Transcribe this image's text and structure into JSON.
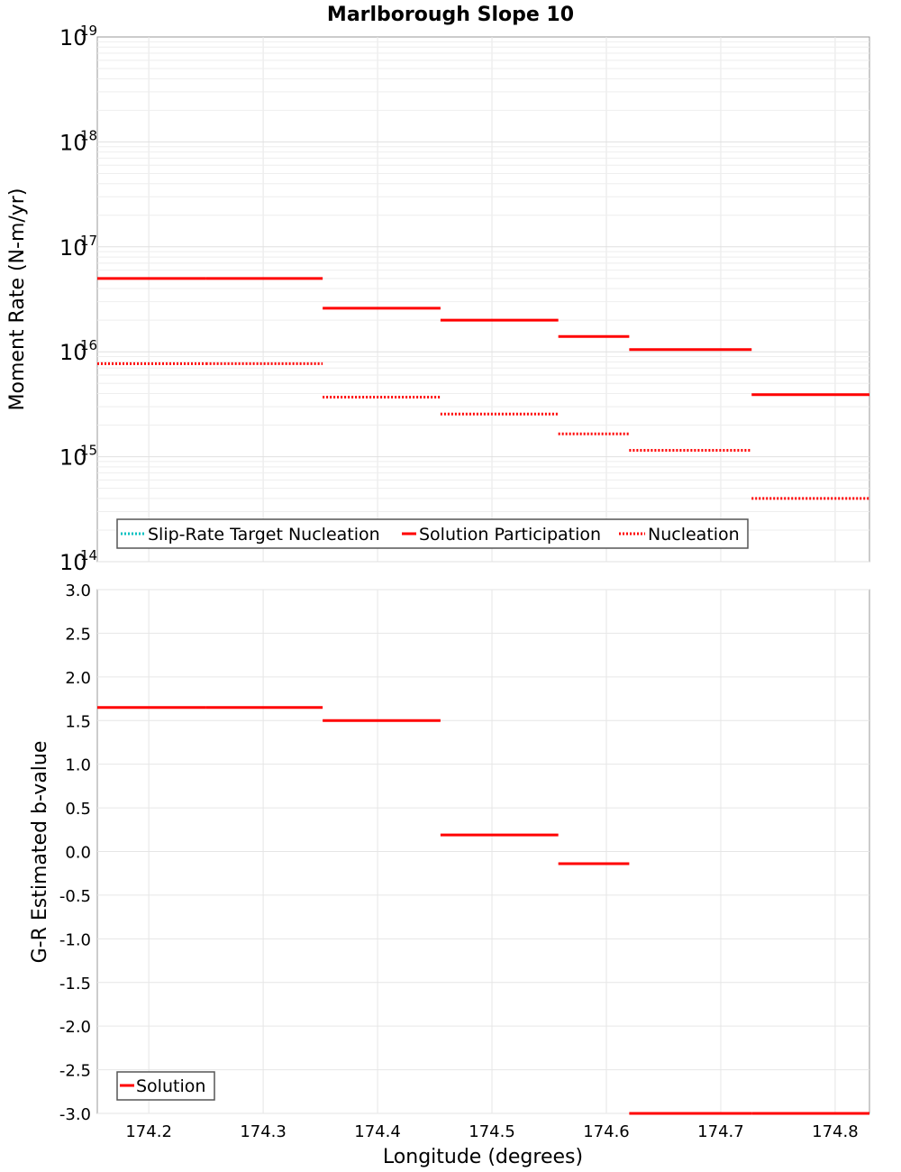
{
  "chart_data": [
    {
      "type": "line",
      "title": "Marlborough Slope 10",
      "xlabel": "",
      "ylabel": "Moment Rate (N-m/yr)",
      "yscale": "log",
      "xlim": [
        174.155,
        174.83
      ],
      "ylim": [
        100000000000000.0,
        1e+19
      ],
      "x_ticks": [],
      "y_ticks": [
        {
          "base": "10",
          "exp": "14",
          "value": 100000000000000.0
        },
        {
          "base": "10",
          "exp": "15",
          "value": 1000000000000000.0
        },
        {
          "base": "10",
          "exp": "16",
          "value": 1e+16
        },
        {
          "base": "10",
          "exp": "17",
          "value": 1e+17
        },
        {
          "base": "10",
          "exp": "18",
          "value": 1e+18
        },
        {
          "base": "10",
          "exp": "19",
          "value": 1e+19
        }
      ],
      "grid": true,
      "legend_position": "bottom-left",
      "series": [
        {
          "name": "Slip-Rate Target Nucleation",
          "color": "#00c0c0",
          "style": "dotted",
          "segments": []
        },
        {
          "name": "Solution Participation",
          "color": "#ff0000",
          "style": "solid",
          "segments": [
            {
              "x0": 174.155,
              "x1": 174.25,
              "y": 5e+16
            },
            {
              "x0": 174.25,
              "x1": 174.352,
              "y": 5e+16
            },
            {
              "x0": 174.352,
              "x1": 174.455,
              "y": 2.6e+16
            },
            {
              "x0": 174.455,
              "x1": 174.558,
              "y": 2e+16
            },
            {
              "x0": 174.558,
              "x1": 174.62,
              "y": 1.4e+16
            },
            {
              "x0": 174.62,
              "x1": 174.727,
              "y": 1.05e+16
            },
            {
              "x0": 174.727,
              "x1": 174.83,
              "y": 3900000000000000.0
            }
          ]
        },
        {
          "name": "Nucleation",
          "color": "#ff0000",
          "style": "dotted",
          "segments": [
            {
              "x0": 174.155,
              "x1": 174.25,
              "y": 7700000000000000.0
            },
            {
              "x0": 174.25,
              "x1": 174.352,
              "y": 7700000000000000.0
            },
            {
              "x0": 174.352,
              "x1": 174.455,
              "y": 3700000000000000.0
            },
            {
              "x0": 174.455,
              "x1": 174.558,
              "y": 2550000000000000.0
            },
            {
              "x0": 174.558,
              "x1": 174.62,
              "y": 1650000000000000.0
            },
            {
              "x0": 174.62,
              "x1": 174.727,
              "y": 1150000000000000.0
            },
            {
              "x0": 174.727,
              "x1": 174.83,
              "y": 400000000000000.0
            }
          ]
        }
      ]
    },
    {
      "type": "line",
      "title": "",
      "xlabel": "Longitude (degrees)",
      "ylabel": "G-R Estimated b-value",
      "xlim": [
        174.155,
        174.83
      ],
      "ylim": [
        -3.0,
        3.0
      ],
      "x_ticks": [
        "174.2",
        "174.3",
        "174.4",
        "174.5",
        "174.6",
        "174.7",
        "174.8"
      ],
      "y_ticks": [
        "3.0",
        "2.5",
        "2.0",
        "1.5",
        "1.0",
        "0.5",
        "0.0",
        "-0.5",
        "-1.0",
        "-1.5",
        "-2.0",
        "-2.5",
        "-3.0"
      ],
      "grid": true,
      "legend_position": "bottom-left",
      "series": [
        {
          "name": "Solution",
          "color": "#ff0000",
          "style": "solid",
          "segments": [
            {
              "x0": 174.155,
              "x1": 174.25,
              "y": 1.65
            },
            {
              "x0": 174.25,
              "x1": 174.352,
              "y": 1.65
            },
            {
              "x0": 174.352,
              "x1": 174.455,
              "y": 1.5
            },
            {
              "x0": 174.455,
              "x1": 174.558,
              "y": 0.19
            },
            {
              "x0": 174.558,
              "x1": 174.62,
              "y": -0.14
            },
            {
              "x0": 174.62,
              "x1": 174.727,
              "y": -3.0
            },
            {
              "x0": 174.727,
              "x1": 174.83,
              "y": -3.0
            }
          ]
        }
      ]
    }
  ]
}
